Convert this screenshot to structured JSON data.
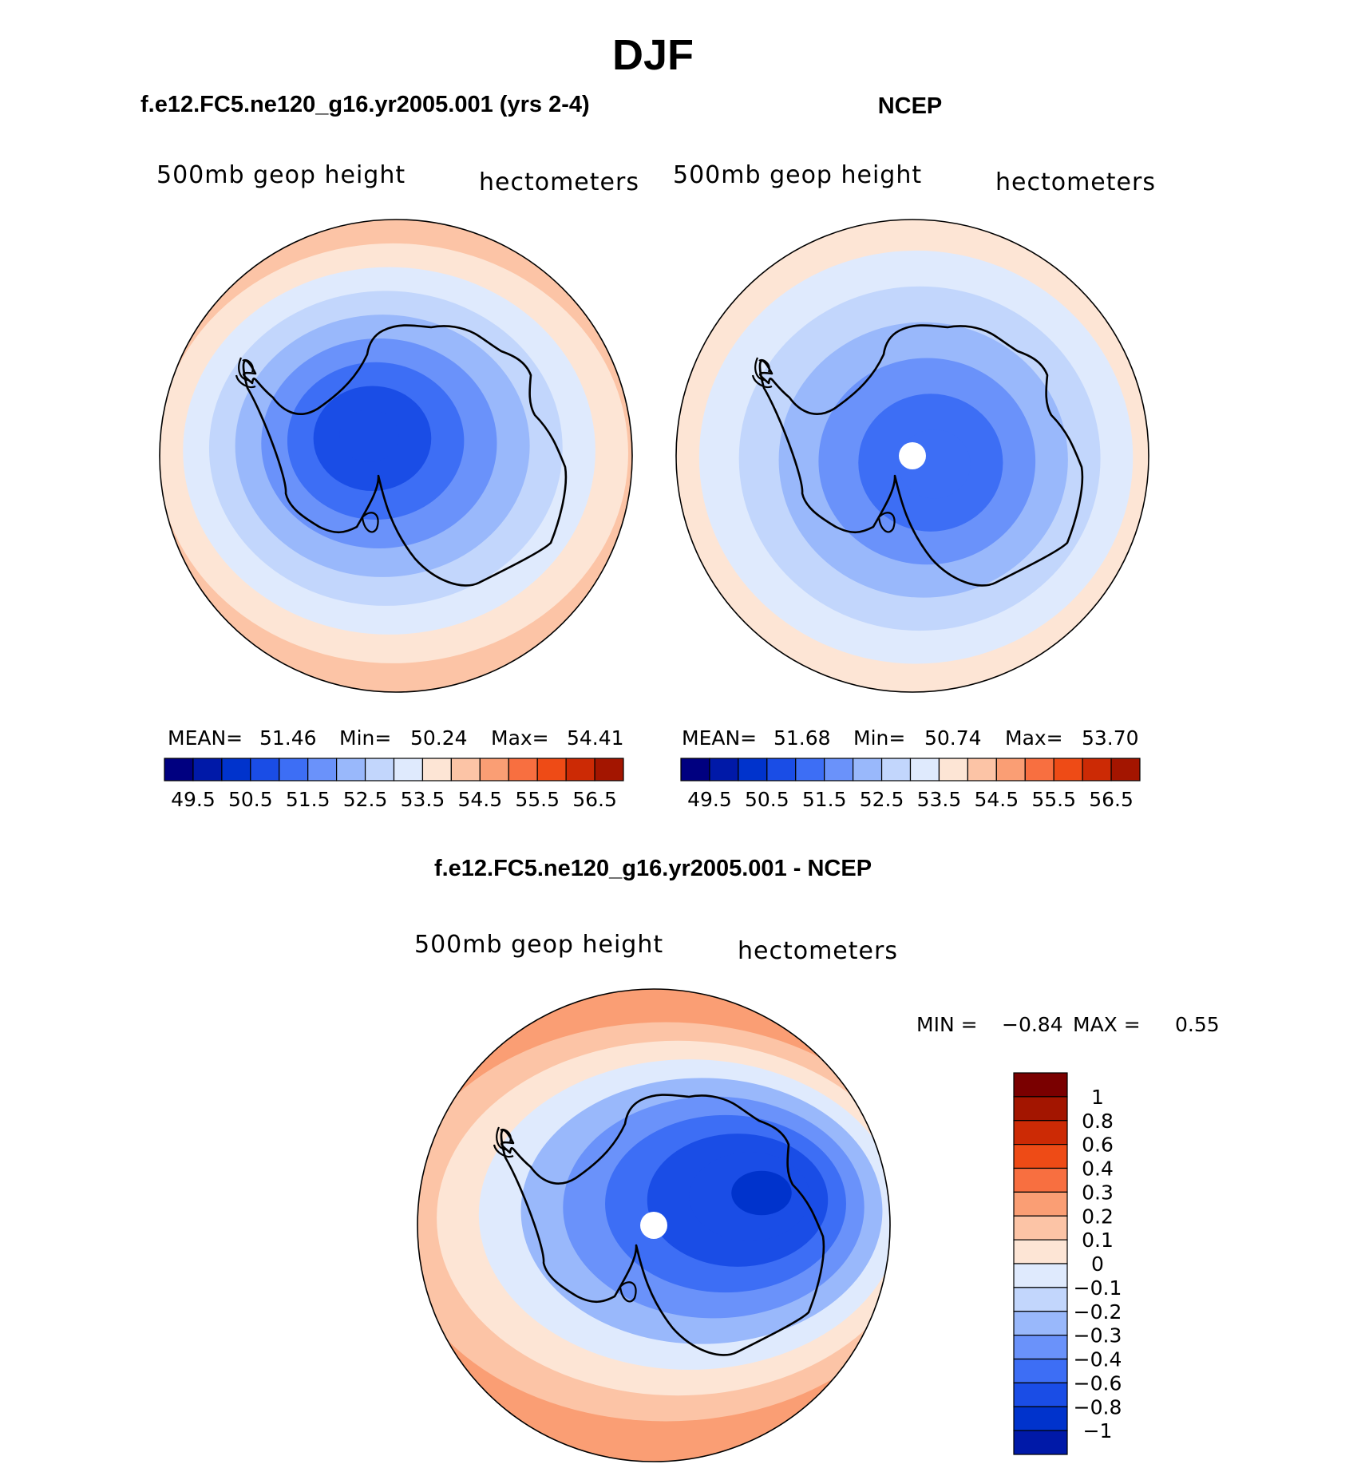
{
  "page": {
    "title": "DJF"
  },
  "chart_data": [
    {
      "type": "heatmap",
      "projection": "south-polar-stereographic",
      "title": "f.e12.FC5.ne120_g16.yr2005.001 (yrs 2-4)",
      "left_label": "500mb geop height",
      "right_label": "hectometers",
      "stats": {
        "mean_label": "MEAN=",
        "mean": "51.46",
        "min_label": "Min=",
        "min": "50.24",
        "max_label": "Max=",
        "max": "54.41"
      },
      "contour_levels": [
        49.5,
        50.0,
        50.5,
        51.0,
        51.5,
        52.0,
        52.5,
        53.0,
        53.5,
        54.0,
        54.5,
        55.0,
        55.5,
        56.0,
        56.5
      ],
      "colorbar_labels": [
        "49.5",
        "50.5",
        "51.5",
        "52.5",
        "53.5",
        "54.5",
        "55.5",
        "56.5"
      ],
      "polar_values": [
        50.6,
        50.8,
        51.2,
        51.6,
        52.1,
        52.6,
        53.1,
        53.6,
        54.1
      ]
    },
    {
      "type": "heatmap",
      "projection": "south-polar-stereographic",
      "title": "NCEP",
      "left_label": "500mb geop height",
      "right_label": "hectometers",
      "stats": {
        "mean_label": "MEAN=",
        "mean": "51.68",
        "min_label": "Min=",
        "min": "50.74",
        "max_label": "Max=",
        "max": "53.70"
      },
      "contour_levels": [
        49.5,
        50.0,
        50.5,
        51.0,
        51.5,
        52.0,
        52.5,
        53.0,
        53.5,
        54.0,
        54.5,
        55.0,
        55.5,
        56.0,
        56.5
      ],
      "colorbar_labels": [
        "49.5",
        "50.5",
        "51.5",
        "52.5",
        "53.5",
        "54.5",
        "55.5",
        "56.5"
      ],
      "polar_values": [
        51.0,
        51.3,
        51.7,
        52.2,
        52.7,
        53.1,
        53.5
      ]
    },
    {
      "type": "heatmap",
      "projection": "south-polar-stereographic",
      "title": "f.e12.FC5.ne120_g16.yr2005.001 - NCEP",
      "left_label": "500mb geop height",
      "right_label": "hectometers",
      "stats": {
        "min_label": "MIN =",
        "min": "−0.84",
        "max_label": "MAX =",
        "max": "0.55"
      },
      "contour_levels": [
        -1,
        -0.8,
        -0.6,
        -0.4,
        -0.3,
        -0.2,
        -0.1,
        0,
        0.1,
        0.2,
        0.3,
        0.4,
        0.6,
        0.8,
        1
      ],
      "colorbar_labels": [
        "1",
        "0.8",
        "0.6",
        "0.4",
        "0.3",
        "0.2",
        "0.1",
        "0",
        "−0.1",
        "−0.2",
        "−0.3",
        "−0.4",
        "−0.6",
        "−0.8",
        "−1"
      ],
      "polar_values": [
        -0.7,
        -0.6,
        -0.45,
        -0.35,
        -0.25,
        -0.15,
        0.05,
        0.15,
        0.25,
        0.35
      ]
    }
  ],
  "colors": {
    "palette": [
      "#000080",
      "#0019a8",
      "#0033cc",
      "#1a4de6",
      "#3d6ef5",
      "#6a92fa",
      "#99b8fb",
      "#c2d6fc",
      "#dfeafd",
      "#fde5d5",
      "#fcc4a6",
      "#fa9e74",
      "#f86f40",
      "#ee4b16",
      "#cc2a05",
      "#a31500",
      "#7a0000"
    ],
    "coast": "#000000",
    "pole": "#ffffff"
  }
}
